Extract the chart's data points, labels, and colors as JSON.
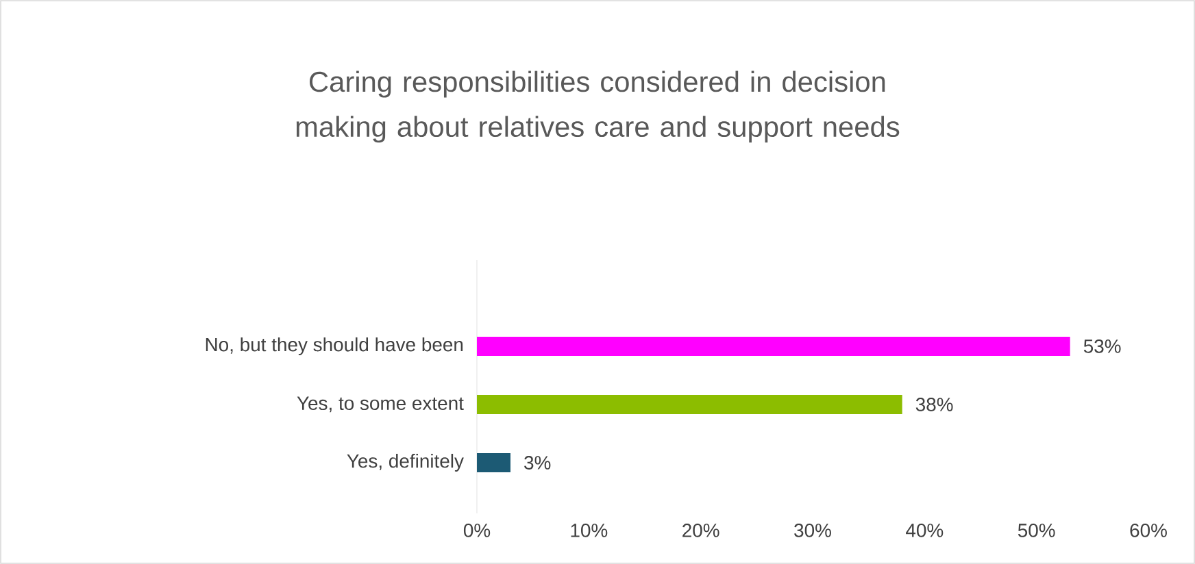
{
  "chart_data": {
    "type": "bar",
    "orientation": "horizontal",
    "title": "Caring responsibilities considered in decision making about relatives care and support needs",
    "categories": [
      "No, but they should have been",
      "Yes, to some extent",
      "Yes, definitely"
    ],
    "values": [
      53,
      38,
      3
    ],
    "colors": [
      "#ff00ff",
      "#8cbd00",
      "#1c5a74"
    ],
    "value_labels": [
      "53%",
      "38%",
      "3%"
    ],
    "xlim": [
      0,
      60
    ],
    "xticks": [
      {
        "value": 0,
        "label": "0%"
      },
      {
        "value": 10,
        "label": "10%"
      },
      {
        "value": 20,
        "label": "20%"
      },
      {
        "value": 30,
        "label": "30%"
      },
      {
        "value": 40,
        "label": "40%"
      },
      {
        "value": 50,
        "label": "50%"
      },
      {
        "value": 60,
        "label": "60%"
      }
    ]
  }
}
